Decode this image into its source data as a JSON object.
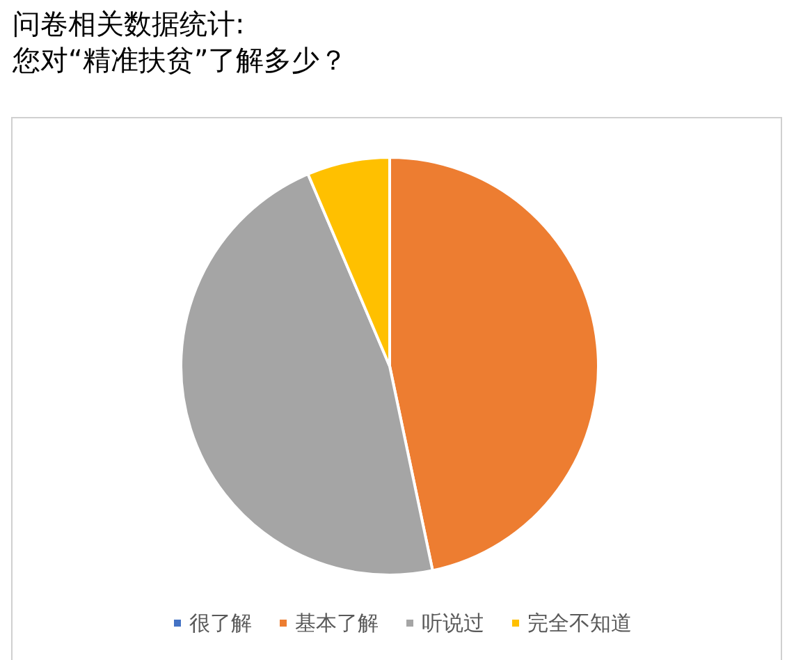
{
  "chart_data": {
    "type": "pie",
    "title": "问卷相关数据统计:",
    "subtitle": "您对“精准扶贫”了解多少？",
    "categories": [
      "很了解",
      "基本了解",
      "听说过",
      "完全不知道"
    ],
    "values": [
      0,
      46.7,
      46.9,
      6.4
    ],
    "colors": [
      "#4472c4",
      "#ed7d31",
      "#a5a5a5",
      "#ffc000"
    ],
    "legend": "bottom"
  }
}
